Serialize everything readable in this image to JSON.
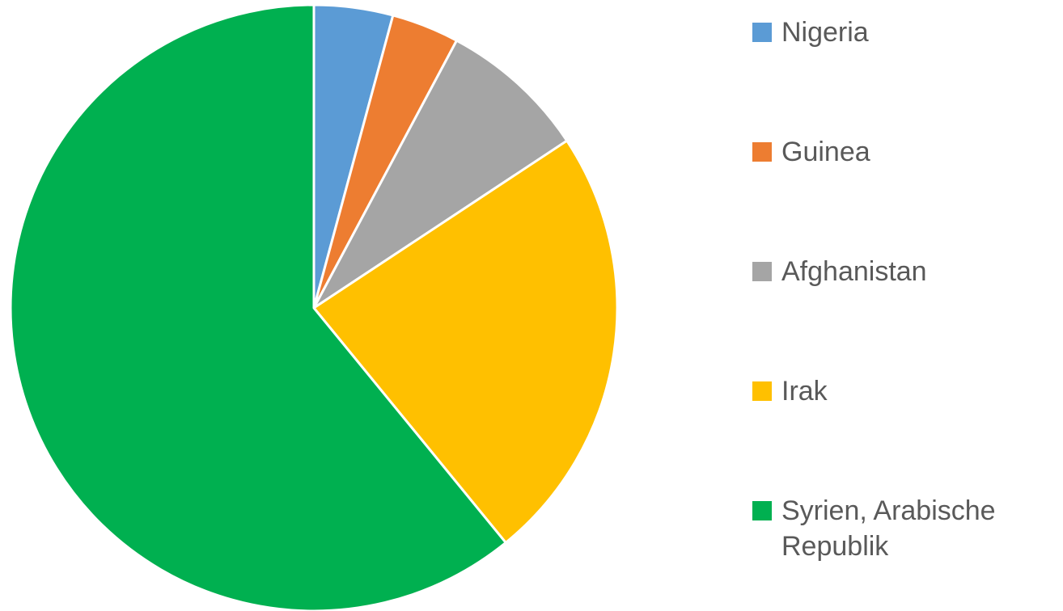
{
  "chart_data": {
    "type": "pie",
    "categories": [
      "Nigeria",
      "Guinea",
      "Afghanistan",
      "Irak",
      "Syrien, Arabische Republik"
    ],
    "values": [
      4.2,
      3.6,
      7.9,
      23.4,
      60.9
    ],
    "colors": [
      "#5b9bd5",
      "#ed7d31",
      "#a5a5a5",
      "#ffc000",
      "#00b050"
    ],
    "legend": "right"
  }
}
